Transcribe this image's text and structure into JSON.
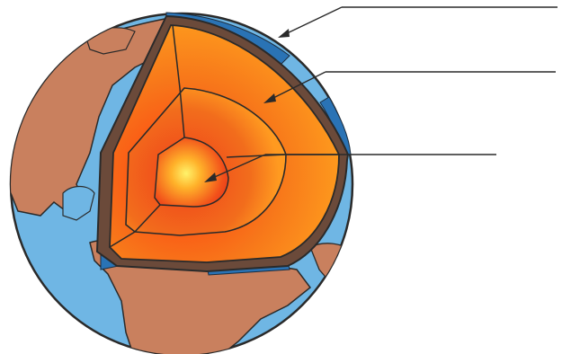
{
  "diagram": {
    "subject": "earth-cross-section",
    "layers": [
      {
        "id": "crust",
        "label": ""
      },
      {
        "id": "mantle",
        "label": ""
      },
      {
        "id": "outer-core",
        "label": ""
      },
      {
        "id": "inner-core",
        "label": ""
      }
    ],
    "colors": {
      "ocean": "#6fb6e4",
      "ocean_dark": "#2e7fb8",
      "land": "#c9805e",
      "land_dark": "#9a5a3e",
      "crust": "#6b4a3a",
      "crust_blue": "#2a73b5",
      "mantle_outer": "#ff9b1a",
      "mantle_inner": "#f05a13",
      "outer_core": "#ef4a17",
      "inner_core_center": "#fff26a",
      "inner_core_edge": "#ee3a12",
      "line": "#2a2a2a"
    }
  }
}
